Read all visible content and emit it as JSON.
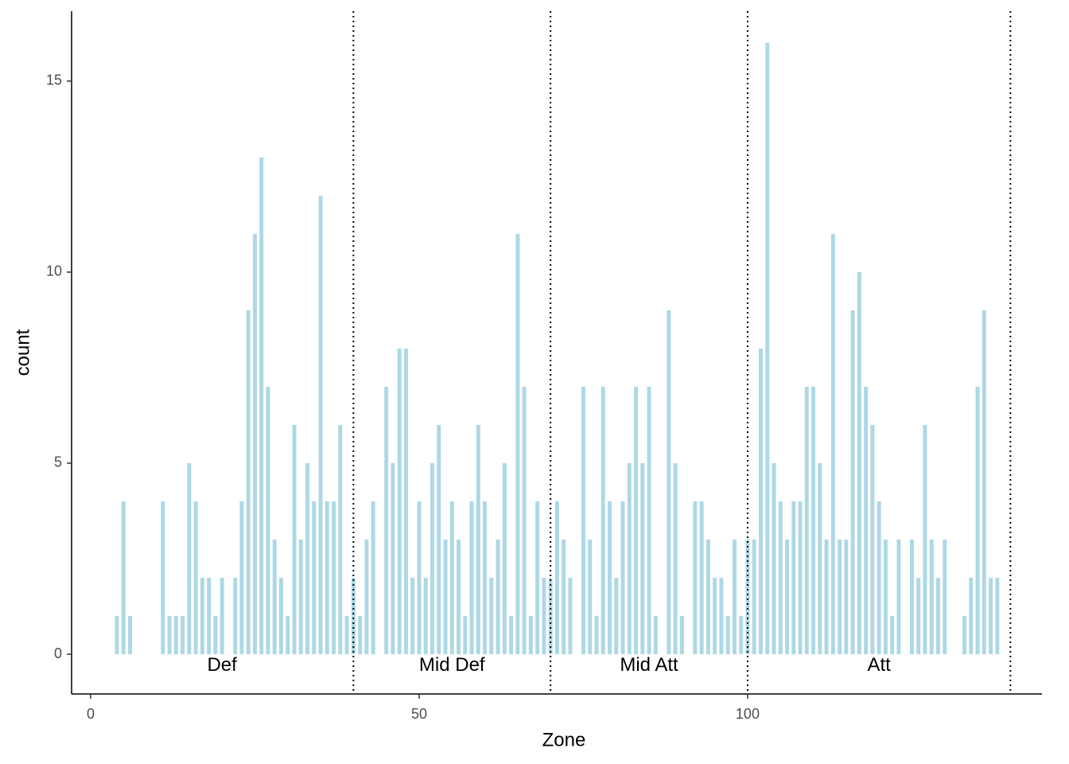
{
  "chart_data": {
    "type": "bar",
    "x_label": "Zone",
    "y_label": "count",
    "x": [
      4,
      5,
      6,
      11,
      12,
      13,
      14,
      15,
      16,
      17,
      18,
      19,
      20,
      22,
      23,
      24,
      25,
      26,
      27,
      28,
      29,
      30,
      31,
      32,
      33,
      34,
      35,
      36,
      37,
      38,
      39,
      40,
      41,
      42,
      43,
      45,
      46,
      47,
      48,
      49,
      50,
      51,
      52,
      53,
      54,
      55,
      56,
      57,
      58,
      59,
      60,
      61,
      62,
      63,
      64,
      65,
      66,
      67,
      68,
      69,
      70,
      71,
      72,
      73,
      75,
      76,
      77,
      78,
      79,
      80,
      81,
      82,
      83,
      84,
      85,
      86,
      88,
      89,
      90,
      92,
      93,
      94,
      95,
      96,
      97,
      98,
      99,
      100,
      101,
      102,
      103,
      104,
      105,
      106,
      107,
      108,
      109,
      110,
      111,
      112,
      113,
      114,
      115,
      116,
      117,
      118,
      119,
      120,
      121,
      122,
      123,
      125,
      126,
      127,
      128,
      129,
      130,
      133,
      134,
      135,
      136,
      137,
      138
    ],
    "values": [
      1,
      4,
      1,
      4,
      1,
      1,
      1,
      5,
      4,
      2,
      2,
      1,
      2,
      2,
      4,
      9,
      11,
      13,
      7,
      3,
      2,
      1,
      6,
      3,
      5,
      4,
      12,
      4,
      4,
      6,
      1,
      2,
      1,
      3,
      4,
      7,
      5,
      8,
      8,
      2,
      4,
      2,
      5,
      6,
      3,
      4,
      3,
      1,
      4,
      6,
      4,
      2,
      3,
      5,
      1,
      11,
      7,
      1,
      4,
      2,
      2,
      4,
      3,
      2,
      7,
      3,
      1,
      7,
      4,
      2,
      4,
      5,
      7,
      5,
      7,
      1,
      9,
      5,
      1,
      4,
      4,
      3,
      2,
      2,
      1,
      3,
      1,
      3,
      3,
      8,
      16,
      5,
      4,
      3,
      4,
      4,
      7,
      7,
      5,
      3,
      11,
      3,
      3,
      9,
      10,
      7,
      6,
      4,
      3,
      1,
      3,
      3,
      2,
      6,
      3,
      2,
      3,
      1,
      2,
      7,
      9,
      2,
      2
    ],
    "color": "#add8e6",
    "vlines": [
      40,
      70,
      100,
      140
    ],
    "annotations": [
      {
        "text": "Def",
        "x": 20,
        "y": -0.3
      },
      {
        "text": "Mid Def",
        "x": 55,
        "y": -0.3
      },
      {
        "text": "Mid Att",
        "x": 85,
        "y": -0.3
      },
      {
        "text": "Att",
        "x": 120,
        "y": -0.3
      }
    ],
    "xlim": [
      -2.9,
      144.8
    ],
    "xticks": [
      0,
      50,
      100
    ],
    "ylim": [
      -1.04,
      16.83
    ],
    "yticks": [
      0,
      5,
      10,
      15
    ]
  }
}
